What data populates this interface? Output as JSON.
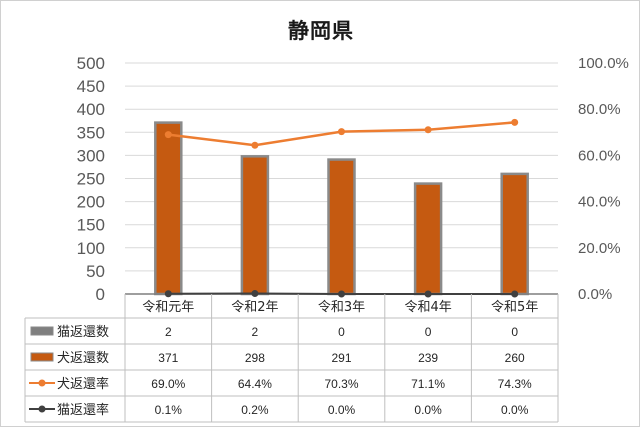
{
  "chart_data": {
    "type": "bar",
    "title": "静岡県",
    "categories": [
      "令和元年",
      "令和2年",
      "令和3年",
      "令和4年",
      "令和5年"
    ],
    "y_left": {
      "lim": [
        0,
        500
      ],
      "ticks": [
        "500",
        "450",
        "400",
        "350",
        "300",
        "250",
        "200",
        "150",
        "100",
        "50",
        "0"
      ]
    },
    "y_right": {
      "lim": [
        0,
        100
      ],
      "ticks": [
        "100.0%",
        "80.0%",
        "60.0%",
        "40.0%",
        "20.0%",
        "0.0%"
      ]
    },
    "series": [
      {
        "name": "猫返還数",
        "kind": "bar",
        "axis": "left",
        "color": "#7f7f7f",
        "values": [
          2,
          2,
          0,
          0,
          0
        ],
        "labels": [
          "2",
          "2",
          "0",
          "0",
          "0"
        ]
      },
      {
        "name": "犬返還数",
        "kind": "bar",
        "axis": "left",
        "color": "#c55a11",
        "values": [
          371,
          298,
          291,
          239,
          260
        ],
        "labels": [
          "371",
          "298",
          "291",
          "239",
          "260"
        ]
      },
      {
        "name": "犬返還率",
        "kind": "line",
        "axis": "right",
        "color": "#ed7d31",
        "values": [
          69.0,
          64.4,
          70.3,
          71.1,
          74.3
        ],
        "labels": [
          "69.0%",
          "64.4%",
          "70.3%",
          "71.1%",
          "74.3%"
        ]
      },
      {
        "name": "猫返還率",
        "kind": "line",
        "axis": "right",
        "color": "#404040",
        "values": [
          0.1,
          0.2,
          0.0,
          0.0,
          0.0
        ],
        "labels": [
          "0.1%",
          "0.2%",
          "0.0%",
          "0.0%",
          "0.0%"
        ]
      }
    ],
    "grid": true,
    "legend": "data-table"
  }
}
